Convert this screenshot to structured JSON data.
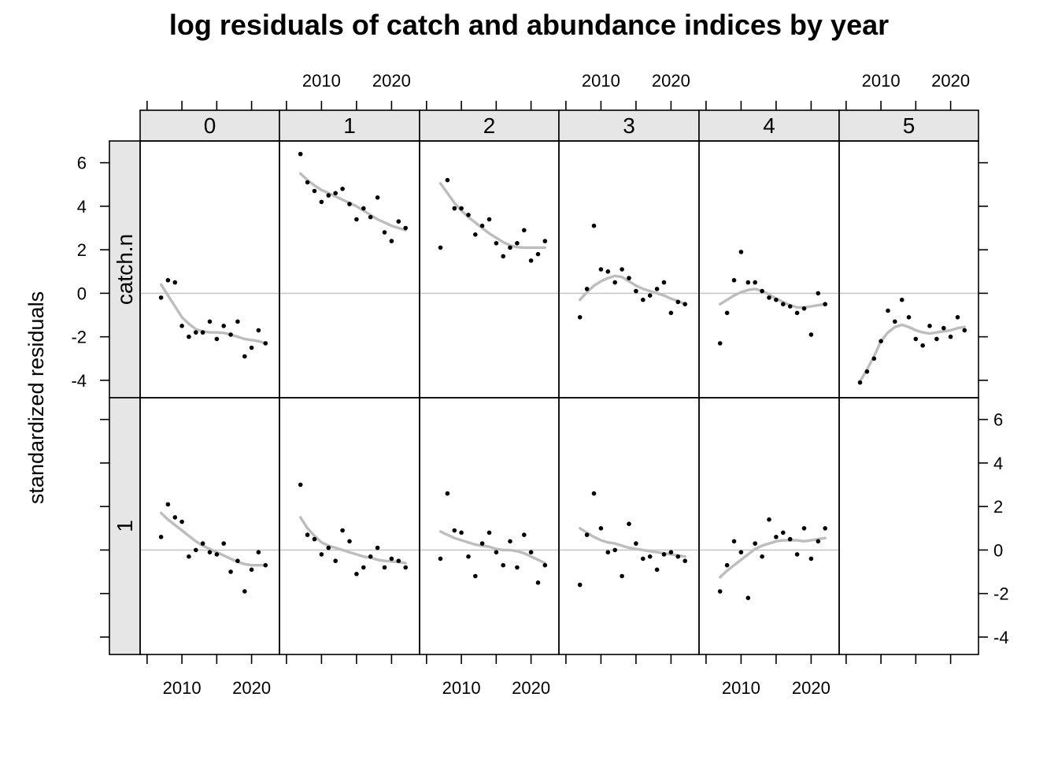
{
  "chart_data": {
    "type": "scatter",
    "title": "log residuals of catch and abundance indices by year",
    "xlabel": "",
    "ylabel": "standardized residuals",
    "xlim": [
      2004,
      2024
    ],
    "ylim": [
      -4.8,
      7.0
    ],
    "x_ticks": [
      2005,
      2010,
      2015,
      2020
    ],
    "x_tick_labels": [
      "2010",
      "2020"
    ],
    "y_ticks": [
      -4,
      -2,
      0,
      2,
      4,
      6
    ],
    "y_tick_labels": [
      "-4",
      "-2",
      "0",
      "2",
      "4",
      "6"
    ],
    "reference_line": 0,
    "grid": false,
    "legend": "none",
    "column_strips": [
      "0",
      "1",
      "2",
      "3",
      "4",
      "5"
    ],
    "row_strips": [
      "catch.n",
      "1"
    ],
    "colors": {
      "points": "#000000",
      "smooth": "#bdbdbd",
      "refline": "#c8c8c8",
      "strip": "#e6e6e6"
    },
    "panels": [
      {
        "row": 0,
        "col": 0,
        "years": [
          2007,
          2008,
          2009,
          2010,
          2011,
          2012,
          2013,
          2014,
          2015,
          2016,
          2017,
          2018,
          2019,
          2020,
          2021,
          2022
        ],
        "residuals": [
          -0.2,
          0.6,
          0.5,
          -1.5,
          -2.0,
          -1.8,
          -1.8,
          -1.3,
          -2.1,
          -1.5,
          -1.9,
          -1.3,
          -2.9,
          -2.5,
          -1.7,
          -2.3
        ],
        "smooth": [
          0.4,
          -0.1,
          -0.6,
          -1.1,
          -1.4,
          -1.65,
          -1.75,
          -1.8,
          -1.8,
          -1.82,
          -1.9,
          -2.0,
          -2.1,
          -2.15,
          -2.2,
          -2.3
        ]
      },
      {
        "row": 0,
        "col": 1,
        "years": [
          2007,
          2008,
          2009,
          2010,
          2011,
          2012,
          2013,
          2014,
          2015,
          2016,
          2017,
          2018,
          2019,
          2020,
          2021,
          2022
        ],
        "residuals": [
          6.4,
          5.1,
          4.7,
          4.2,
          4.5,
          4.6,
          4.8,
          4.1,
          3.4,
          3.9,
          3.5,
          4.4,
          2.8,
          2.4,
          3.3,
          3.0
        ],
        "smooth": [
          5.5,
          5.2,
          4.95,
          4.75,
          4.6,
          4.45,
          4.3,
          4.15,
          4.0,
          3.8,
          3.6,
          3.4,
          3.25,
          3.1,
          3.0,
          2.9
        ]
      },
      {
        "row": 0,
        "col": 2,
        "years": [
          2007,
          2008,
          2009,
          2010,
          2011,
          2012,
          2013,
          2014,
          2015,
          2016,
          2017,
          2018,
          2019,
          2020,
          2021,
          2022
        ],
        "residuals": [
          2.1,
          5.2,
          3.9,
          3.9,
          3.6,
          2.7,
          3.1,
          3.4,
          2.3,
          1.7,
          2.1,
          2.3,
          2.9,
          1.5,
          1.8,
          2.4
        ],
        "smooth": [
          5.05,
          4.6,
          4.15,
          3.8,
          3.5,
          3.25,
          3.0,
          2.75,
          2.55,
          2.35,
          2.2,
          2.12,
          2.1,
          2.1,
          2.1,
          2.1
        ]
      },
      {
        "row": 0,
        "col": 3,
        "years": [
          2007,
          2008,
          2009,
          2010,
          2011,
          2012,
          2013,
          2014,
          2015,
          2016,
          2017,
          2018,
          2019,
          2020,
          2021,
          2022
        ],
        "residuals": [
          -1.1,
          0.2,
          3.1,
          1.1,
          1.0,
          0.5,
          1.1,
          0.7,
          0.1,
          -0.3,
          -0.1,
          0.2,
          0.5,
          -0.9,
          -0.4,
          -0.5
        ],
        "smooth": [
          -0.3,
          0.05,
          0.35,
          0.55,
          0.7,
          0.8,
          0.75,
          0.55,
          0.35,
          0.2,
          0.1,
          0.0,
          -0.1,
          -0.25,
          -0.35,
          -0.5
        ]
      },
      {
        "row": 0,
        "col": 4,
        "years": [
          2007,
          2008,
          2009,
          2010,
          2011,
          2012,
          2013,
          2014,
          2015,
          2016,
          2017,
          2018,
          2019,
          2020,
          2021,
          2022
        ],
        "residuals": [
          -2.3,
          -0.9,
          0.6,
          1.9,
          0.5,
          0.5,
          0.1,
          -0.2,
          -0.3,
          -0.5,
          -0.6,
          -0.9,
          -0.7,
          -1.9,
          0.0,
          -0.5
        ],
        "smooth": [
          -0.5,
          -0.3,
          -0.1,
          0.05,
          0.15,
          0.2,
          0.1,
          -0.05,
          -0.25,
          -0.4,
          -0.55,
          -0.65,
          -0.65,
          -0.6,
          -0.55,
          -0.5
        ]
      },
      {
        "row": 0,
        "col": 5,
        "years": [
          2007,
          2008,
          2009,
          2010,
          2011,
          2012,
          2013,
          2014,
          2015,
          2016,
          2017,
          2018,
          2019,
          2020,
          2021,
          2022
        ],
        "residuals": [
          -4.1,
          -3.6,
          -3.0,
          -2.2,
          -0.8,
          -1.3,
          -0.3,
          -1.1,
          -2.1,
          -2.4,
          -1.5,
          -2.1,
          -1.6,
          -2.0,
          -1.1,
          -1.7
        ],
        "smooth": [
          -4.05,
          -3.5,
          -2.9,
          -2.2,
          -1.8,
          -1.55,
          -1.45,
          -1.55,
          -1.7,
          -1.8,
          -1.85,
          -1.8,
          -1.75,
          -1.7,
          -1.6,
          -1.55
        ]
      },
      {
        "row": 1,
        "col": 0,
        "years": [
          2007,
          2008,
          2009,
          2010,
          2011,
          2012,
          2013,
          2014,
          2015,
          2016,
          2017,
          2018,
          2019,
          2020,
          2021,
          2022
        ],
        "residuals": [
          0.6,
          2.1,
          1.5,
          1.3,
          -0.3,
          0.0,
          0.3,
          -0.1,
          -0.2,
          0.3,
          -1.0,
          -0.5,
          -1.9,
          -0.9,
          -0.1,
          -0.7
        ],
        "smooth": [
          1.7,
          1.4,
          1.15,
          0.9,
          0.65,
          0.4,
          0.2,
          0.05,
          -0.1,
          -0.25,
          -0.4,
          -0.55,
          -0.65,
          -0.7,
          -0.7,
          -0.7
        ]
      },
      {
        "row": 1,
        "col": 1,
        "years": [
          2007,
          2008,
          2009,
          2010,
          2011,
          2012,
          2013,
          2014,
          2015,
          2016,
          2017,
          2018,
          2019,
          2020,
          2021,
          2022
        ],
        "residuals": [
          3.0,
          0.7,
          0.5,
          -0.2,
          0.1,
          -0.5,
          0.9,
          0.4,
          -1.1,
          -0.8,
          -0.3,
          0.1,
          -0.8,
          -0.4,
          -0.5,
          -0.8
        ],
        "smooth": [
          1.5,
          1.0,
          0.65,
          0.35,
          0.2,
          0.1,
          0.0,
          -0.1,
          -0.2,
          -0.3,
          -0.35,
          -0.45,
          -0.5,
          -0.52,
          -0.55,
          -0.6
        ]
      },
      {
        "row": 1,
        "col": 2,
        "years": [
          2007,
          2008,
          2009,
          2010,
          2011,
          2012,
          2013,
          2014,
          2015,
          2016,
          2017,
          2018,
          2019,
          2020,
          2021,
          2022
        ],
        "residuals": [
          -0.4,
          2.6,
          0.9,
          0.8,
          -0.3,
          -1.2,
          0.3,
          0.8,
          -0.1,
          -0.7,
          0.4,
          -0.8,
          0.7,
          -0.1,
          -1.5,
          -0.7
        ],
        "smooth": [
          0.85,
          0.7,
          0.55,
          0.45,
          0.35,
          0.25,
          0.2,
          0.15,
          0.05,
          0.0,
          0.0,
          -0.05,
          -0.15,
          -0.3,
          -0.45,
          -0.6
        ]
      },
      {
        "row": 1,
        "col": 3,
        "years": [
          2007,
          2008,
          2009,
          2010,
          2011,
          2012,
          2013,
          2014,
          2015,
          2016,
          2017,
          2018,
          2019,
          2020,
          2021,
          2022
        ],
        "residuals": [
          -1.6,
          0.7,
          2.6,
          1.0,
          -0.1,
          0.0,
          -1.2,
          1.2,
          0.3,
          -0.4,
          -0.3,
          -0.9,
          -0.2,
          -0.1,
          -0.3,
          -0.5
        ],
        "smooth": [
          1.0,
          0.8,
          0.6,
          0.45,
          0.35,
          0.3,
          0.2,
          0.1,
          0.05,
          0.0,
          -0.05,
          -0.1,
          -0.15,
          -0.2,
          -0.25,
          -0.3
        ]
      },
      {
        "row": 1,
        "col": 4,
        "years": [
          2007,
          2008,
          2009,
          2010,
          2011,
          2012,
          2013,
          2014,
          2015,
          2016,
          2017,
          2018,
          2019,
          2020,
          2021,
          2022
        ],
        "residuals": [
          -1.9,
          -0.7,
          0.4,
          -0.1,
          -2.2,
          0.3,
          -0.3,
          1.4,
          0.6,
          0.8,
          0.5,
          -0.2,
          1.0,
          -0.4,
          0.4,
          1.0
        ],
        "smooth": [
          -1.25,
          -0.95,
          -0.7,
          -0.45,
          -0.2,
          0.05,
          0.2,
          0.3,
          0.4,
          0.45,
          0.45,
          0.45,
          0.4,
          0.45,
          0.5,
          0.55
        ]
      }
    ]
  }
}
